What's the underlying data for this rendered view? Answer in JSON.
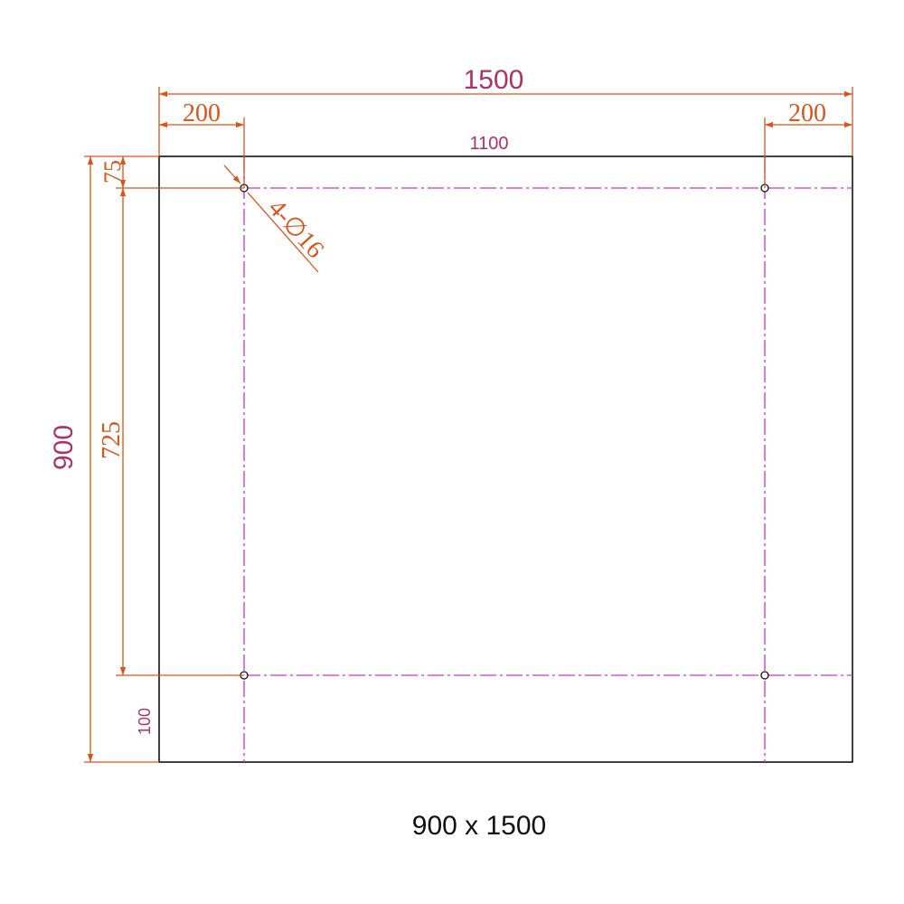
{
  "dimensions": {
    "overall_width": "1500",
    "overall_height": "900",
    "left_offset": "200",
    "right_offset": "200",
    "inner_span": "1100",
    "top_offset": "75",
    "hole_spacing_vertical": "725",
    "bottom_offset": "100"
  },
  "holes_callout": "4-∅16",
  "caption": "900 x 1500",
  "colors": {
    "dimension_lines": "#d9541a",
    "center_lines": "#cc33cc",
    "outline": "#111111",
    "major_text": "#a8336b"
  }
}
